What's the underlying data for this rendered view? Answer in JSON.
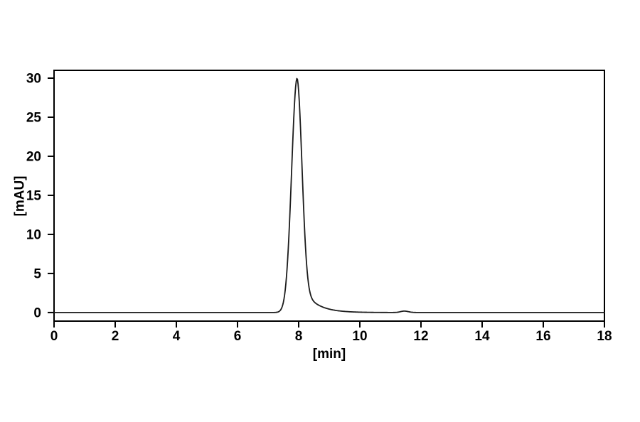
{
  "figure": {
    "background_color": "#ffffff",
    "axis_color": "#000000",
    "trace_color": "#1c1c1c",
    "kind": "HPLC chromatogram"
  },
  "chart_data": {
    "type": "line",
    "title": "",
    "xlabel": "[min]",
    "ylabel": "[mAU]",
    "xlim": [
      0,
      18
    ],
    "ylim": [
      -1.1,
      31
    ],
    "x_ticks": [
      0,
      2,
      4,
      6,
      8,
      10,
      12,
      14,
      16,
      18
    ],
    "y_ticks": [
      0,
      5,
      10,
      15,
      20,
      25,
      30
    ],
    "grid": false,
    "legend": "none",
    "series": [
      {
        "name": "detector-signal",
        "baseline_mAU": 0,
        "sample_step_min": 0.02,
        "peaks": [
          {
            "retention_time_min": 7.95,
            "height_mAU": 30,
            "sigma_left_min": 0.18,
            "sigma_right_min": 0.16,
            "tail_fraction": 0.15,
            "tail_tau_min": 0.45
          },
          {
            "retention_time_min": 11.45,
            "height_mAU": 0.18,
            "sigma_left_min": 0.12,
            "sigma_right_min": 0.14,
            "tail_fraction": 0,
            "tail_tau_min": 0.3
          }
        ]
      }
    ]
  }
}
